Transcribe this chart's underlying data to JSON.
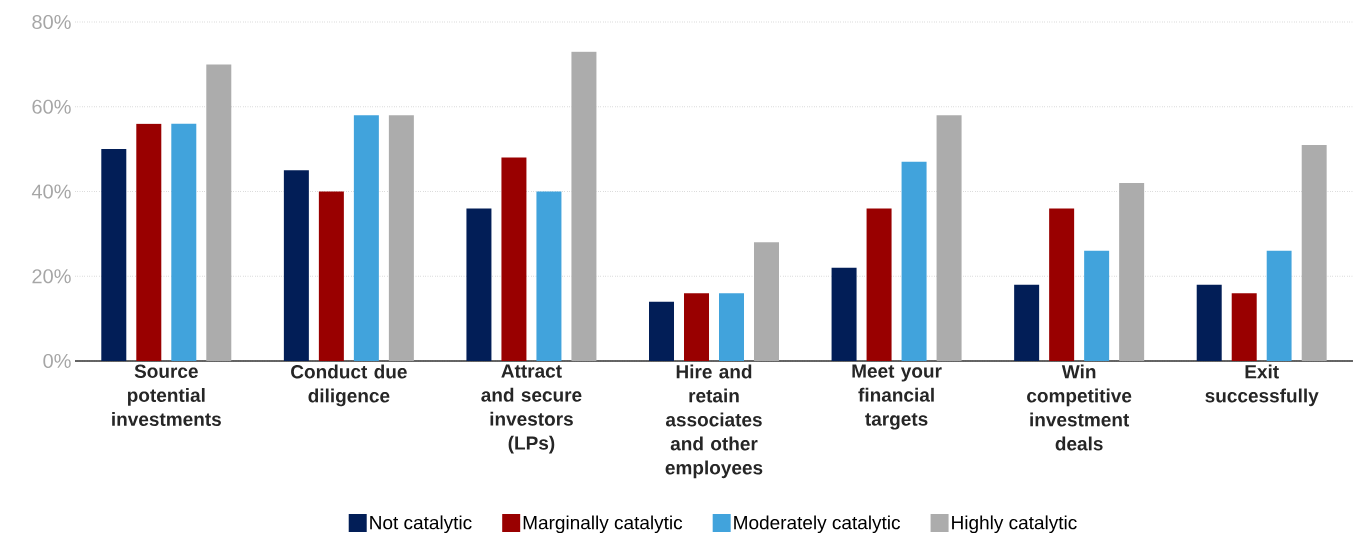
{
  "chart_data": {
    "type": "bar",
    "categories": [
      "Source potential investments",
      "Conduct due diligence",
      "Attract and secure investors (LPs)",
      "Hire and retain associates and other employees",
      "Meet your financial targets",
      "Win competitive investment deals",
      "Exit successfully"
    ],
    "series": [
      {
        "name": "Not catalytic",
        "color": "#021e57",
        "values": [
          50,
          45,
          36,
          14,
          22,
          18,
          18
        ]
      },
      {
        "name": "Marginally catalytic",
        "color": "#990000",
        "values": [
          56,
          40,
          48,
          16,
          36,
          36,
          16
        ]
      },
      {
        "name": "Moderately catalytic",
        "color": "#41a3dc",
        "values": [
          56,
          58,
          40,
          16,
          47,
          26,
          26
        ]
      },
      {
        "name": "Highly catalytic",
        "color": "#acacac",
        "values": [
          70,
          58,
          73,
          28,
          58,
          42,
          51
        ]
      }
    ],
    "ylim": [
      0,
      80
    ],
    "yticks": [
      {
        "value": 0,
        "label": "0%"
      },
      {
        "value": 20,
        "label": "20%"
      },
      {
        "value": 40,
        "label": "40%"
      },
      {
        "value": 60,
        "label": "60%"
      },
      {
        "value": 80,
        "label": "80%"
      }
    ],
    "grid": "y",
    "legend": "bottom"
  }
}
